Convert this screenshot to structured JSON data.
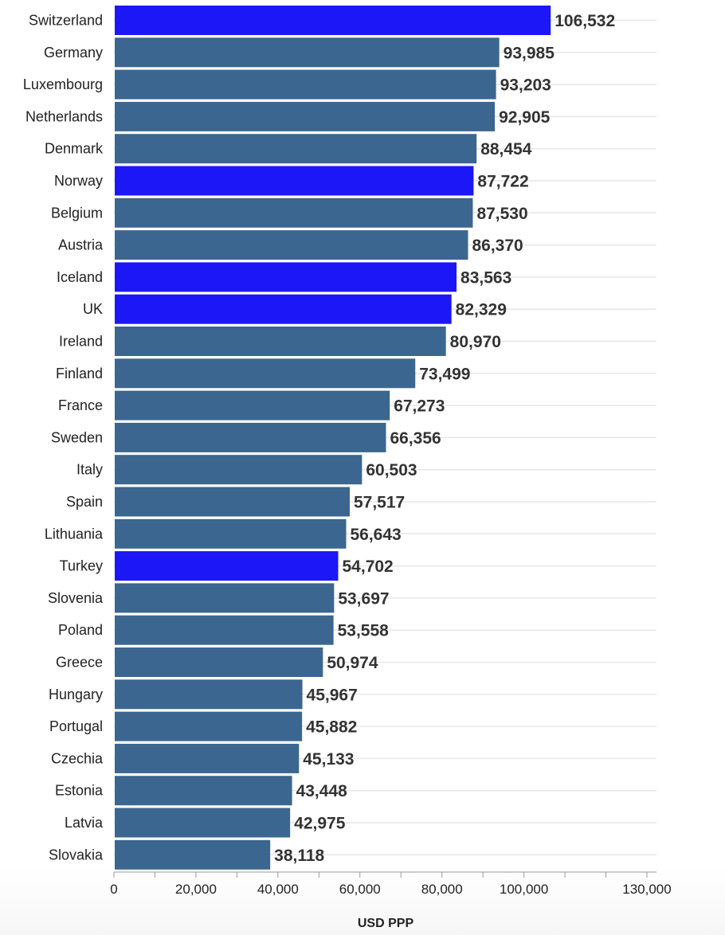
{
  "chart_data": {
    "type": "bar",
    "orientation": "horizontal",
    "categories": [
      "Switzerland",
      "Germany",
      "Luxembourg",
      "Netherlands",
      "Denmark",
      "Norway",
      "Belgium",
      "Austria",
      "Iceland",
      "UK",
      "Ireland",
      "Finland",
      "France",
      "Sweden",
      "Italy",
      "Spain",
      "Lithuania",
      "Turkey",
      "Slovenia",
      "Poland",
      "Greece",
      "Hungary",
      "Portugal",
      "Czechia",
      "Estonia",
      "Latvia",
      "Slovakia"
    ],
    "values": [
      106532,
      93985,
      93203,
      92905,
      88454,
      87722,
      87530,
      86370,
      83563,
      82329,
      80970,
      73499,
      67273,
      66356,
      60503,
      57517,
      56643,
      54702,
      53697,
      53558,
      50974,
      45967,
      45882,
      45133,
      43448,
      42975,
      38118
    ],
    "value_labels": [
      "106,532",
      "93,985",
      "93,203",
      "92,905",
      "88,454",
      "87,722",
      "87,530",
      "86,370",
      "83,563",
      "82,329",
      "80,970",
      "73,499",
      "67,273",
      "66,356",
      "60,503",
      "57,517",
      "56,643",
      "54,702",
      "53,697",
      "53,558",
      "50,974",
      "45,967",
      "45,882",
      "45,133",
      "43,448",
      "42,975",
      "38,118"
    ],
    "highlighted": [
      "Switzerland",
      "Norway",
      "Iceland",
      "UK",
      "Turkey"
    ],
    "colors": {
      "default_bar": "#3b668f",
      "highlight_bar": "#1c17f7",
      "gridline": "#e7e7e7",
      "axis": "#9a9a9a"
    },
    "xlabel": "USD PPP",
    "ylabel": "",
    "xlim": [
      0,
      130000
    ],
    "x_ticks": [
      0,
      20000,
      40000,
      60000,
      80000,
      100000,
      130000
    ],
    "x_tick_labels": [
      "0",
      "20,000",
      "40,000",
      "60,000",
      "80,000",
      "100,000",
      "130,000"
    ],
    "grid": true,
    "legend": "none"
  }
}
